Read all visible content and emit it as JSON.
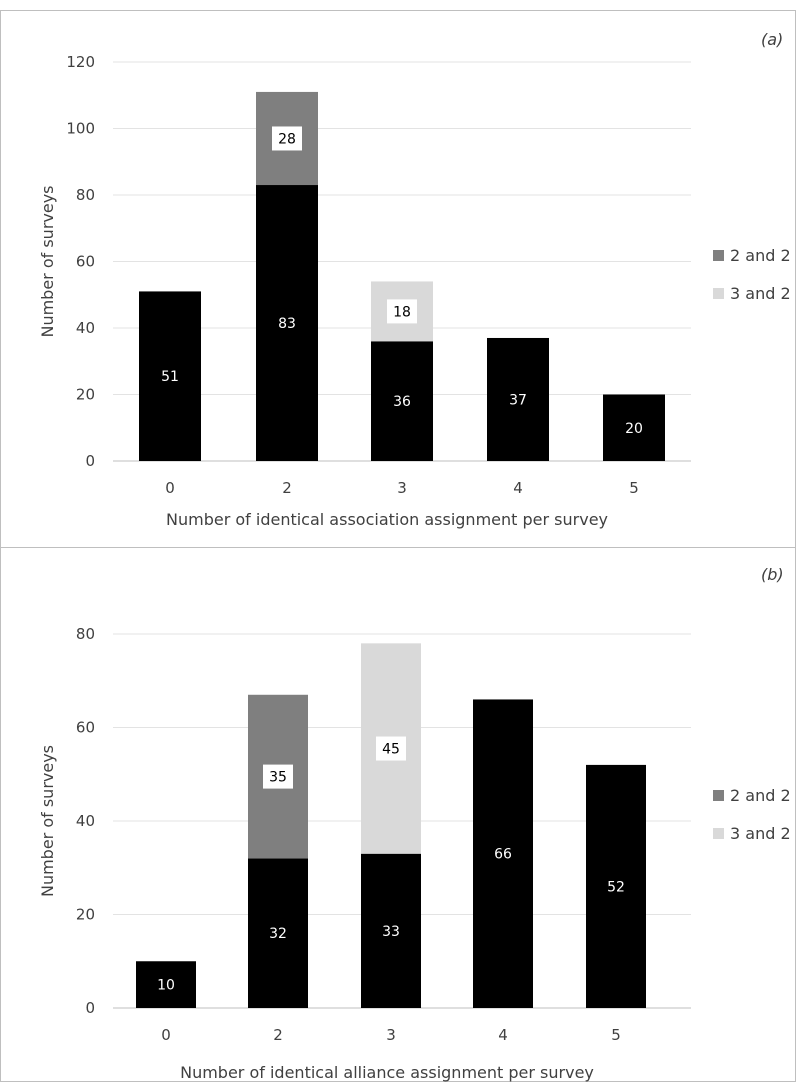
{
  "chart_data": [
    {
      "type": "bar",
      "stacked": true,
      "panel_label": "(a)",
      "categories": [
        "0",
        "2",
        "3",
        "4",
        "5"
      ],
      "series": [
        {
          "name": "",
          "color": "#000000",
          "values": [
            51,
            83,
            36,
            37,
            20
          ]
        },
        {
          "name": "2 and 2",
          "color": "#7f7f7f",
          "values": [
            0,
            28,
            0,
            0,
            0
          ]
        },
        {
          "name": "3 and 2",
          "color": "#d9d9d9",
          "values": [
            0,
            0,
            18,
            0,
            0
          ]
        }
      ],
      "xlabel": "Number of identical association assignment per survey",
      "ylabel": "Number of surveys",
      "ylim": [
        0,
        120
      ],
      "yticks": [
        0,
        20,
        40,
        60,
        80,
        100,
        120
      ],
      "grid": true,
      "legend": [
        "2 and 2",
        "3 and 2"
      ],
      "legend_position": "right"
    },
    {
      "type": "bar",
      "stacked": true,
      "panel_label": "(b)",
      "categories": [
        "0",
        "2",
        "3",
        "4",
        "5"
      ],
      "series": [
        {
          "name": "",
          "color": "#000000",
          "values": [
            10,
            32,
            33,
            66,
            52
          ]
        },
        {
          "name": "2 and 2",
          "color": "#7f7f7f",
          "values": [
            0,
            35,
            0,
            0,
            0
          ]
        },
        {
          "name": "3 and 2",
          "color": "#d9d9d9",
          "values": [
            0,
            0,
            45,
            0,
            0
          ]
        }
      ],
      "xlabel": "Number of identical alliance assignment per survey",
      "ylabel": "Number of surveys",
      "ylim": [
        0,
        80
      ],
      "yticks": [
        0,
        20,
        40,
        60,
        80
      ],
      "grid": true,
      "legend": [
        "2 and 2",
        "3 and 2"
      ],
      "legend_position": "right"
    }
  ]
}
